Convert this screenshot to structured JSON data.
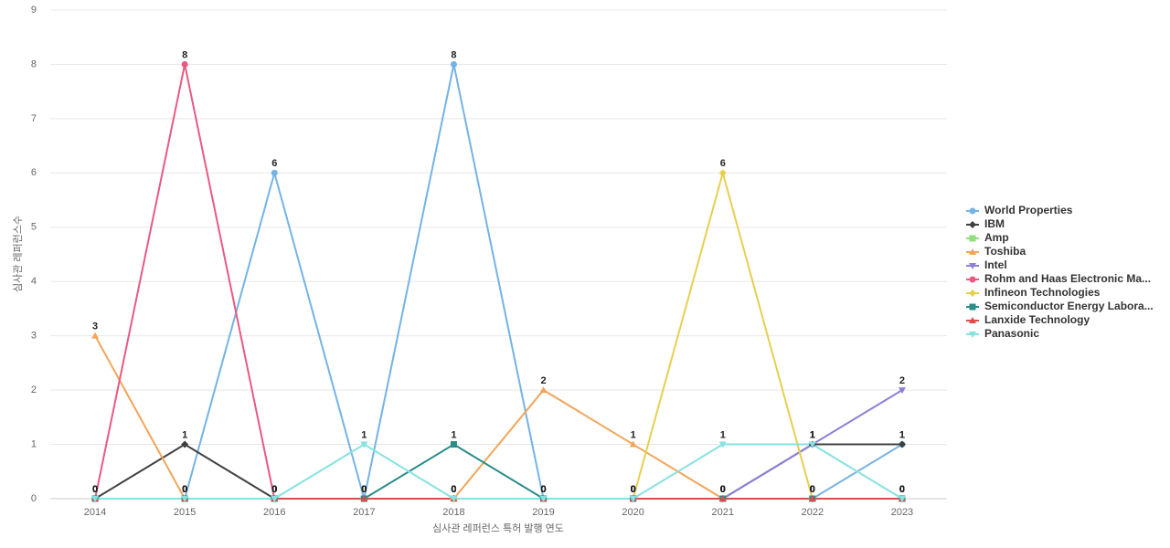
{
  "chart_data": {
    "type": "line",
    "x_label": "심사관 레퍼런스 특허 발행 연도",
    "y_label": "심사관 레퍼런스수",
    "categories": [
      "2014",
      "2015",
      "2016",
      "2017",
      "2018",
      "2019",
      "2020",
      "2021",
      "2022",
      "2023"
    ],
    "ylim": [
      0,
      9
    ],
    "yticks": [
      0,
      1,
      2,
      3,
      4,
      5,
      6,
      7,
      8,
      9
    ],
    "grid": true,
    "series": [
      {
        "name": "World Properties",
        "color": "#74b3e6",
        "marker": "circle",
        "values": [
          0,
          0,
          6,
          0,
          8,
          0,
          0,
          0,
          0,
          1
        ]
      },
      {
        "name": "IBM",
        "color": "#404040",
        "marker": "diamond",
        "values": [
          0,
          1,
          0,
          0,
          0,
          0,
          0,
          0,
          1,
          1
        ]
      },
      {
        "name": "Amp",
        "color": "#8ee07a",
        "marker": "square",
        "values": [
          0,
          0,
          0,
          0,
          0,
          0,
          0,
          0,
          0,
          0
        ]
      },
      {
        "name": "Toshiba",
        "color": "#f2a55a",
        "marker": "triangle",
        "values": [
          3,
          0,
          0,
          0,
          0,
          2,
          1,
          0,
          0,
          0
        ]
      },
      {
        "name": "Intel",
        "color": "#8c80da",
        "marker": "triangle-down",
        "values": [
          0,
          0,
          0,
          0,
          0,
          0,
          0,
          0,
          1,
          2
        ]
      },
      {
        "name": "Rohm and Haas Electronic Ma...",
        "color": "#e85a82",
        "marker": "circle",
        "values": [
          0,
          8,
          0,
          0,
          0,
          0,
          0,
          0,
          0,
          0
        ]
      },
      {
        "name": "Infineon Technologies",
        "color": "#e6cf4e",
        "marker": "diamond",
        "values": [
          0,
          0,
          0,
          0,
          0,
          0,
          0,
          6,
          0,
          0
        ]
      },
      {
        "name": "Semiconductor Energy Labora...",
        "color": "#2a8c88",
        "marker": "square",
        "values": [
          0,
          0,
          0,
          0,
          1,
          0,
          0,
          0,
          0,
          0
        ]
      },
      {
        "name": "Lanxide Technology",
        "color": "#e04a4a",
        "marker": "triangle",
        "values": [
          0,
          0,
          0,
          0,
          0,
          0,
          0,
          0,
          0,
          0
        ]
      },
      {
        "name": "Panasonic",
        "color": "#86e2e0",
        "marker": "triangle-down",
        "values": [
          0,
          0,
          0,
          1,
          0,
          0,
          0,
          1,
          1,
          0
        ]
      }
    ]
  }
}
